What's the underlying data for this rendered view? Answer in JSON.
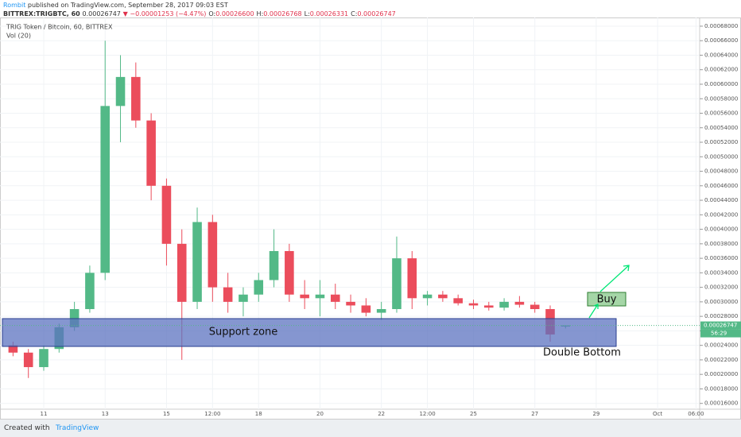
{
  "header": {
    "author": "Rombit",
    "published": "published on TradingView.com, September 28, 2017 09:03 EST",
    "symbol": "BITTREX:TRIGBTC, 60",
    "price": "0.00026747",
    "change": "▼ −0.00001253 (−4.47%)",
    "ohlc": [
      {
        "key": "O:",
        "val": "0.00026600"
      },
      {
        "key": "H:",
        "val": "0.00026768"
      },
      {
        "key": "L:",
        "val": "0.00026331"
      },
      {
        "key": "C:",
        "val": "0.00026747"
      }
    ]
  },
  "footer": {
    "created": "Created with",
    "brand": "TradingView"
  },
  "chart_data": {
    "type": "candlestick",
    "title": "TRIG Token / Bitcoin, 60, BITTREX",
    "indicator": "Vol (20)",
    "up_color": "#53b987",
    "down_color": "#eb4d5c",
    "grid": true,
    "xlim": [
      -0.425,
      22.37
    ],
    "ylim": [
      0.000152,
      0.000692
    ],
    "xticks": [
      {
        "value": 1,
        "label": "11"
      },
      {
        "value": 3,
        "label": "13"
      },
      {
        "value": 5,
        "label": "15"
      },
      {
        "value": 6.5,
        "label": "12:00"
      },
      {
        "value": 8,
        "label": "18"
      },
      {
        "value": 10,
        "label": "20"
      },
      {
        "value": 12,
        "label": "22"
      },
      {
        "value": 13.5,
        "label": "12:00"
      },
      {
        "value": 15,
        "label": "25"
      },
      {
        "value": 17,
        "label": "27"
      },
      {
        "value": 19,
        "label": "29"
      },
      {
        "value": 21,
        "label": "Oct"
      },
      {
        "value": 22.25,
        "label": "06:00"
      }
    ],
    "yticks": [
      {
        "value": 0.00068,
        "label": "0.00068000"
      },
      {
        "value": 0.00066,
        "label": "0.00066000"
      },
      {
        "value": 0.00064,
        "label": "0.00064000"
      },
      {
        "value": 0.00062,
        "label": "0.00062000"
      },
      {
        "value": 0.0006,
        "label": "0.00060000"
      },
      {
        "value": 0.00058,
        "label": "0.00058000"
      },
      {
        "value": 0.00056,
        "label": "0.00056000"
      },
      {
        "value": 0.00054,
        "label": "0.00054000"
      },
      {
        "value": 0.00052,
        "label": "0.00052000"
      },
      {
        "value": 0.0005,
        "label": "0.00050000"
      },
      {
        "value": 0.00048,
        "label": "0.00048000"
      },
      {
        "value": 0.00046,
        "label": "0.00046000"
      },
      {
        "value": 0.00044,
        "label": "0.00044000"
      },
      {
        "value": 0.00042,
        "label": "0.00042000"
      },
      {
        "value": 0.0004,
        "label": "0.00040000"
      },
      {
        "value": 0.00038,
        "label": "0.00038000"
      },
      {
        "value": 0.00036,
        "label": "0.00036000"
      },
      {
        "value": 0.00034,
        "label": "0.00034000"
      },
      {
        "value": 0.00032,
        "label": "0.00032000"
      },
      {
        "value": 0.0003,
        "label": "0.00030000"
      },
      {
        "value": 0.00028,
        "label": "0.00028000"
      },
      {
        "value": 0.00026,
        "label": "0.00026000"
      },
      {
        "value": 0.00024,
        "label": "0.00024000"
      },
      {
        "value": 0.00022,
        "label": "0.00022000"
      },
      {
        "value": 0.0002,
        "label": "0.00020000"
      },
      {
        "value": 0.00018,
        "label": "0.00018000"
      },
      {
        "value": 0.00016,
        "label": "0.00016000"
      }
    ],
    "candles": {
      "x": [
        0,
        0.5,
        1,
        1.5,
        2,
        2.5,
        3,
        3.5,
        4,
        4.5,
        5,
        5.5,
        6,
        6.5,
        7,
        7.5,
        8,
        8.5,
        9,
        9.5,
        10,
        10.5,
        11,
        11.5,
        12,
        12.5,
        13,
        13.5,
        14,
        14.5,
        15,
        15.5,
        16,
        16.5,
        17,
        17.5,
        18
      ],
      "open": [
        0.00024,
        0.00023,
        0.00021,
        0.000235,
        0.000265,
        0.00029,
        0.00034,
        0.00057,
        0.00061,
        0.00055,
        0.00046,
        0.00038,
        0.0003,
        0.00041,
        0.00032,
        0.0003,
        0.00031,
        0.00033,
        0.00037,
        0.00031,
        0.000305,
        0.00031,
        0.0003,
        0.000295,
        0.000285,
        0.00029,
        0.00036,
        0.000305,
        0.00031,
        0.000305,
        0.000298,
        0.000295,
        0.000292,
        0.0003,
        0.000296,
        0.00029,
        0.000266
      ],
      "high": [
        0.000245,
        0.000235,
        0.00024,
        0.00027,
        0.0003,
        0.00035,
        0.00066,
        0.00064,
        0.00063,
        0.00056,
        0.00047,
        0.0004,
        0.00043,
        0.00042,
        0.00034,
        0.00032,
        0.00034,
        0.0004,
        0.00038,
        0.00033,
        0.00033,
        0.000325,
        0.00031,
        0.000305,
        0.0003,
        0.00039,
        0.00037,
        0.000315,
        0.000315,
        0.00031,
        0.000303,
        0.0003,
        0.000305,
        0.000308,
        0.0003,
        0.000295,
        0.00026768
      ],
      "low": [
        0.000225,
        0.000195,
        0.000205,
        0.00023,
        0.00026,
        0.000285,
        0.00033,
        0.00052,
        0.00054,
        0.00044,
        0.00035,
        0.00022,
        0.00029,
        0.0003,
        0.000285,
        0.00028,
        0.0003,
        0.00032,
        0.0003,
        0.00029,
        0.00028,
        0.00029,
        0.000285,
        0.00028,
        0.000275,
        0.000285,
        0.00029,
        0.000295,
        0.0003,
        0.000295,
        0.00029,
        0.000288,
        0.000288,
        0.000292,
        0.000285,
        0.000245,
        0.00026331
      ],
      "close": [
        0.00023,
        0.00021,
        0.000235,
        0.000265,
        0.00029,
        0.00034,
        0.00057,
        0.00061,
        0.00055,
        0.00046,
        0.00038,
        0.0003,
        0.00041,
        0.00032,
        0.0003,
        0.00031,
        0.00033,
        0.00037,
        0.00031,
        0.000305,
        0.00031,
        0.0003,
        0.000295,
        0.000285,
        0.00029,
        0.00036,
        0.000305,
        0.00031,
        0.000305,
        0.000298,
        0.000295,
        0.000292,
        0.0003,
        0.000296,
        0.00029,
        0.000255,
        0.00026747
      ]
    },
    "last_price": 0.00026747,
    "countdown": "56:29",
    "annotations": {
      "zone": "Support zone",
      "buy": "Buy",
      "pattern": "Double Bottom"
    }
  }
}
